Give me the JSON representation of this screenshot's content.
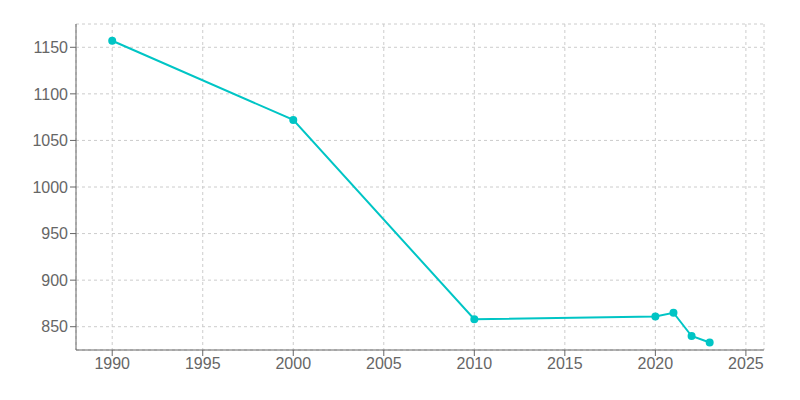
{
  "chart_data": {
    "type": "line",
    "x": [
      1990,
      2000,
      2010,
      2020,
      2021,
      2022,
      2023
    ],
    "values": [
      1157,
      1072,
      858,
      861,
      865,
      840,
      833
    ],
    "color": "#00C5C5",
    "marker": "circle",
    "xlim": [
      1988,
      2026
    ],
    "ylim": [
      825,
      1175
    ],
    "xticks": [
      1990,
      1995,
      2000,
      2005,
      2010,
      2015,
      2020,
      2025
    ],
    "yticks": [
      850,
      900,
      950,
      1000,
      1050,
      1100,
      1150
    ],
    "grid": true
  }
}
